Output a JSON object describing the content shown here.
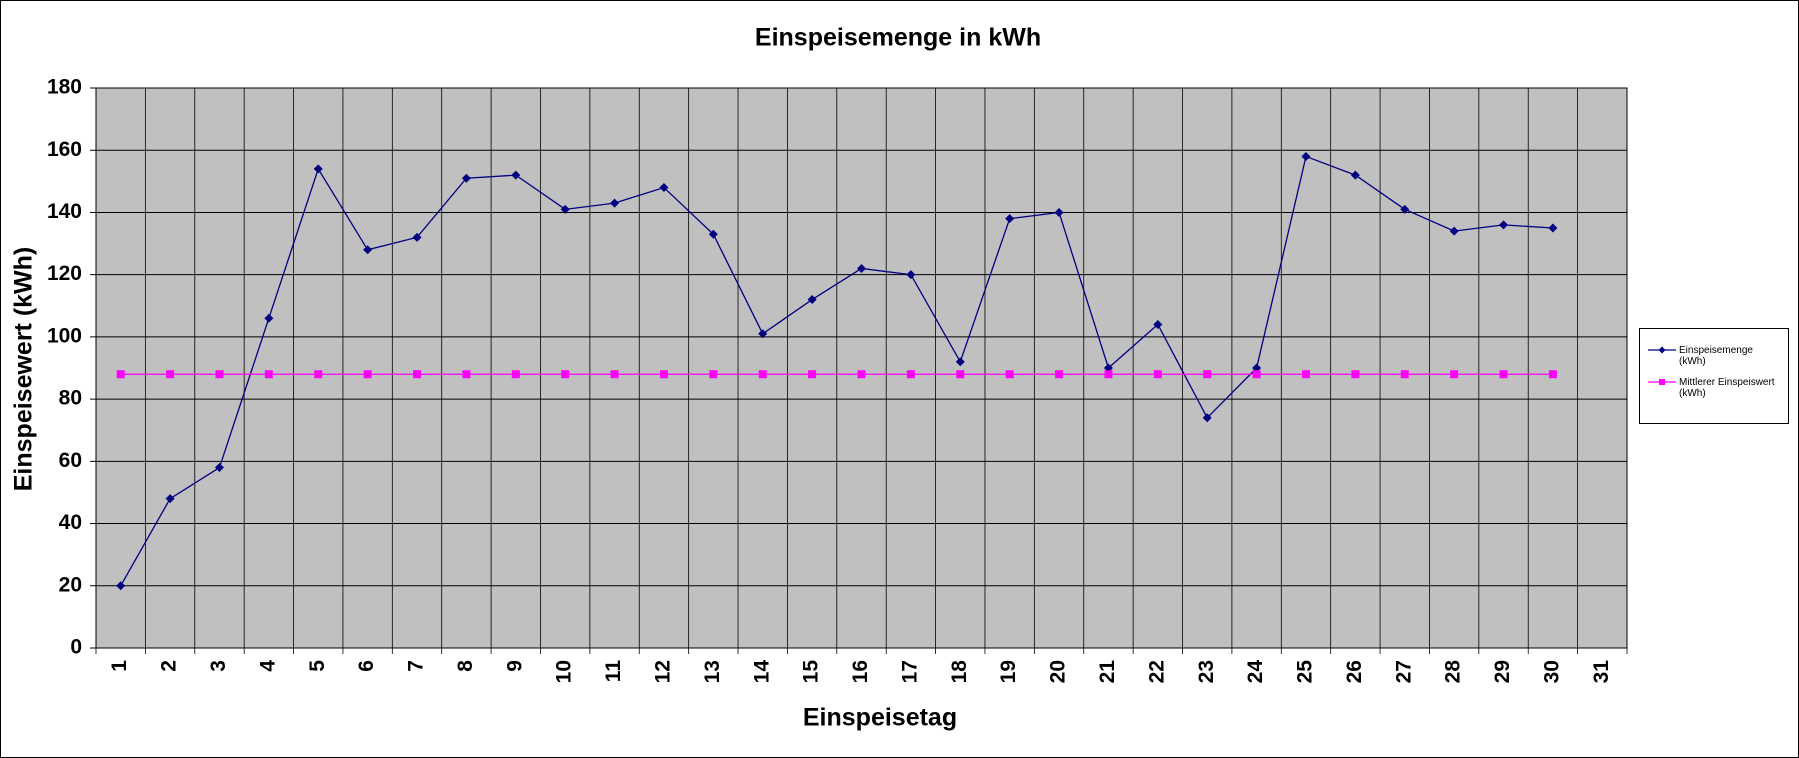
{
  "chart_data": {
    "type": "line",
    "title": "Einspeisemenge in kWh",
    "x_label": "Einspeisetag",
    "y_label": "Einspeisewert  (kWh)",
    "categories": [
      "1",
      "2",
      "3",
      "4",
      "5",
      "6",
      "7",
      "8",
      "9",
      "10",
      "11",
      "12",
      "13",
      "14",
      "15",
      "16",
      "17",
      "18",
      "19",
      "20",
      "21",
      "22",
      "23",
      "24",
      "25",
      "26",
      "27",
      "28",
      "29",
      "30",
      "31"
    ],
    "series": [
      {
        "name": "Einspeisemenge (kWh)",
        "color": "#000080",
        "marker": "diamond",
        "values": [
          20,
          48,
          58,
          106,
          154,
          128,
          132,
          151,
          152,
          141,
          143,
          148,
          133,
          101,
          112,
          122,
          120,
          92,
          138,
          140,
          90,
          104,
          74,
          90,
          158,
          152,
          141,
          134,
          136,
          135,
          null
        ]
      },
      {
        "name": "Mittlerer Einspeiswert (kWh)",
        "color": "#ff00ff",
        "marker": "square",
        "values": [
          88,
          88,
          88,
          88,
          88,
          88,
          88,
          88,
          88,
          88,
          88,
          88,
          88,
          88,
          88,
          88,
          88,
          88,
          88,
          88,
          88,
          88,
          88,
          88,
          88,
          88,
          88,
          88,
          88,
          88,
          null
        ]
      }
    ],
    "ylim": [
      0,
      180
    ],
    "yticks": [
      0,
      20,
      40,
      60,
      80,
      100,
      120,
      140,
      160,
      180
    ],
    "grid": true,
    "legend": "right"
  }
}
